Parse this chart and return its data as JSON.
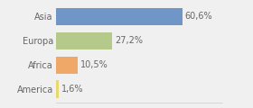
{
  "categories": [
    "Asia",
    "Europa",
    "Africa",
    "America"
  ],
  "values": [
    60.6,
    27.2,
    10.5,
    1.6
  ],
  "labels": [
    "60,6%",
    "27,2%",
    "10,5%",
    "1,6%"
  ],
  "bar_colors": [
    "#7096c8",
    "#b5c98a",
    "#f0a868",
    "#e8d870"
  ],
  "background_color": "#f0f0f0",
  "xlim": [
    0,
    80
  ],
  "bar_height": 0.72,
  "label_fontsize": 7.0,
  "tick_fontsize": 7.0,
  "label_color": "#666666",
  "tick_color": "#666666"
}
